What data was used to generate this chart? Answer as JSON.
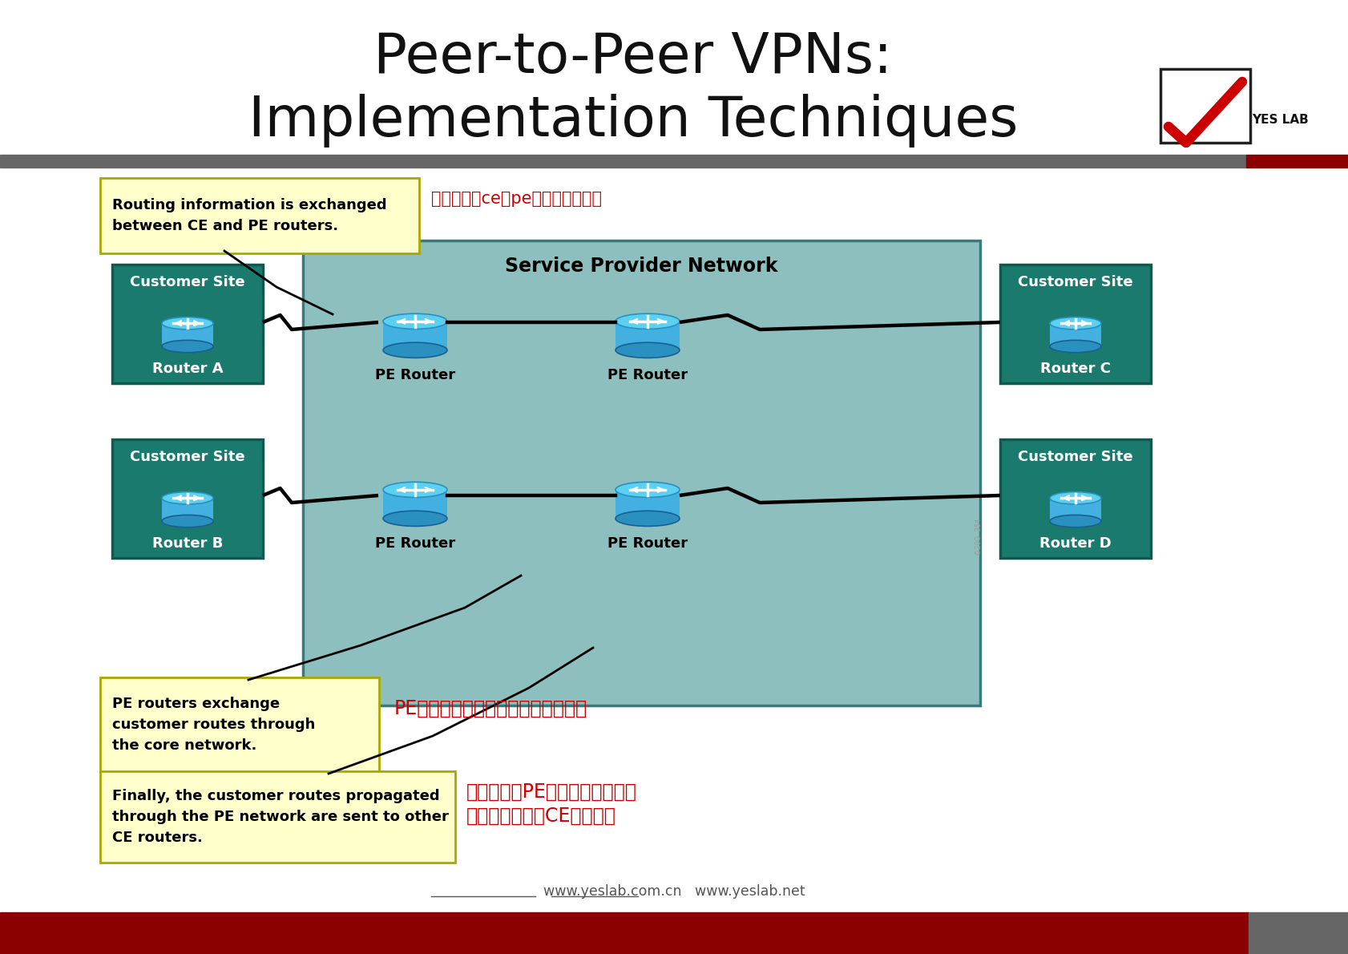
{
  "title_line1": "Peer-to-Peer VPNs:",
  "title_line2": "Implementation Techniques",
  "bg_color": "#ffffff",
  "title_color": "#111111",
  "title_fontsize": 50,
  "sp_network_color": "#8dbfbf",
  "sp_network_border": "#4a8a8a",
  "customer_box_color": "#1a7a6e",
  "customer_box_border": "#0f5a50",
  "callout_bg": "#ffffcc",
  "callout_border": "#aaa800",
  "annotation_color": "#cc0000",
  "dark_red": "#8b0000",
  "gray": "#666666",
  "link_text": "www.yeslab.com.cn   www.yeslab.net",
  "callout1_en": "Routing information is exchanged\nbetween CE and PE routers.",
  "callout1_cn": "路由信息在ce和pe路由器之间交换",
  "callout2_en": "PE routers exchange\ncustomer routes through\nthe core network.",
  "callout2_cn": "PE路由器通过核心网络交换客户路由",
  "callout3_en": "Finally, the customer routes propagated\nthrough the PE network are sent to other\nCE routers.",
  "callout3_cn_l1": "最后，通过PE网络传播的客户路",
  "callout3_cn_l2": "由被发送到其他CE路由器。",
  "sp_label": "Service Provider Network",
  "customer_site": "Customer Site",
  "pe_router": "PE Router",
  "router_a": "Router A",
  "router_b": "Router B",
  "router_c": "Router C",
  "router_d": "Router D",
  "yes_lab": "YES LAB"
}
